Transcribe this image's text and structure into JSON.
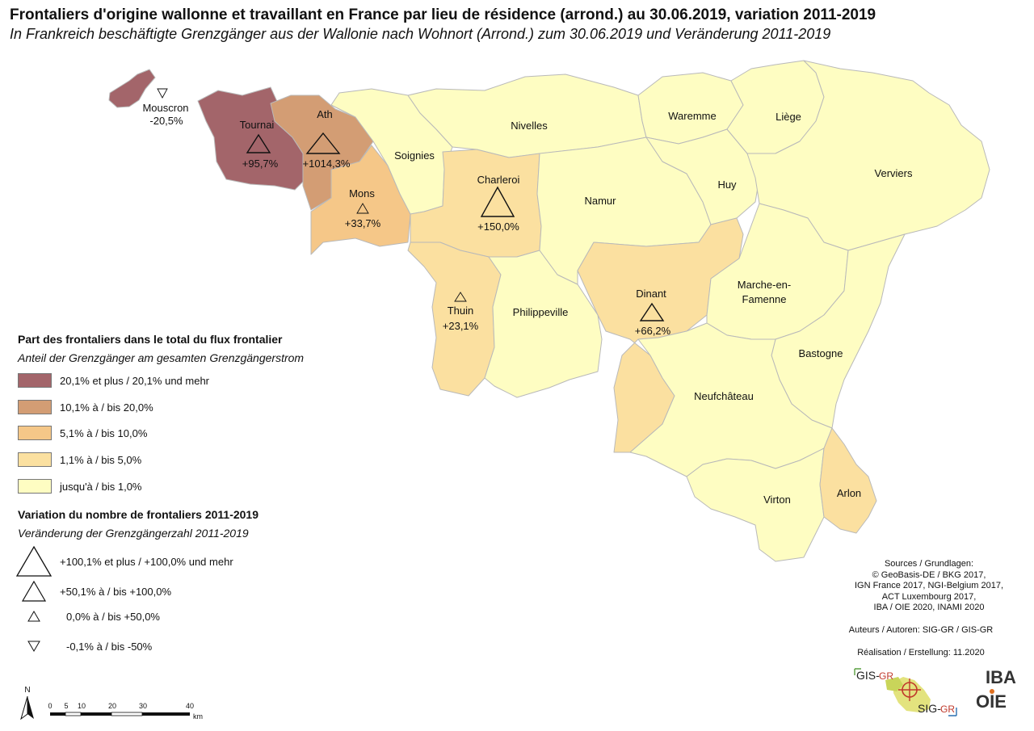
{
  "title": "Frontaliers d'origine wallonne et travaillant en France par lieu de résidence (arrond.) au 30.06.2019, variation 2011-2019",
  "subtitle": "In Frankreich beschäftigte Grenzgänger aus der Wallonie nach Wohnort (Arrond.) zum 30.06.2019 und Veränderung 2011-2019",
  "colors": {
    "class1": "#a3656a",
    "class2": "#d39d74",
    "class3": "#f5c788",
    "class4": "#fbe0a0",
    "class5": "#fefdc2",
    "border": "#b9b9b9"
  },
  "districts": [
    {
      "name": "Mouscron",
      "variation": "-20,5%",
      "share_class": 1,
      "trend": "down",
      "size_class": 4
    },
    {
      "name": "Tournai",
      "variation": "+95,7%",
      "share_class": 1,
      "trend": "up",
      "size_class": 2
    },
    {
      "name": "Ath",
      "variation": "+1014,3%",
      "share_class": 2,
      "trend": "up",
      "size_class": 1
    },
    {
      "name": "Mons",
      "variation": "+33,7%",
      "share_class": 3,
      "trend": "up",
      "size_class": 3
    },
    {
      "name": "Soignies",
      "variation": "",
      "share_class": 5
    },
    {
      "name": "Charleroi",
      "variation": "+150,0%",
      "share_class": 4,
      "trend": "up",
      "size_class": 1
    },
    {
      "name": "Thuin",
      "variation": "+23,1%",
      "share_class": 4,
      "trend": "up",
      "size_class": 3
    },
    {
      "name": "Philippeville",
      "variation": "",
      "share_class": 5
    },
    {
      "name": "Nivelles",
      "variation": "",
      "share_class": 5
    },
    {
      "name": "Namur",
      "variation": "",
      "share_class": 5
    },
    {
      "name": "Dinant",
      "variation": "+66,2%",
      "share_class": 4,
      "trend": "up",
      "size_class": 2
    },
    {
      "name": "Waremme",
      "variation": "",
      "share_class": 5
    },
    {
      "name": "Huy",
      "variation": "",
      "share_class": 5
    },
    {
      "name": "Liège",
      "variation": "",
      "share_class": 5
    },
    {
      "name": "Verviers",
      "variation": "",
      "share_class": 5
    },
    {
      "name": "Marche-en-",
      "variation": "",
      "share_class": 5
    },
    {
      "name": "Famenne",
      "variation": "",
      "share_class": 5
    },
    {
      "name": "Bastogne",
      "variation": "",
      "share_class": 5
    },
    {
      "name": "Neufchâteau",
      "variation": "",
      "share_class": 5
    },
    {
      "name": "Virton",
      "variation": "",
      "share_class": 5
    },
    {
      "name": "Arlon",
      "variation": "",
      "share_class": 4
    }
  ],
  "legend": {
    "share_title": "Part des frontaliers dans le total du flux frontalier",
    "share_subtitle": "Anteil der Grenzgänger am gesamten Grenzgängerstrom",
    "share_classes": [
      "20,1% et plus / 20,1% und mehr",
      "10,1% à / bis 20,0%",
      "5,1% à / bis 10,0%",
      "1,1% à / bis 5,0%",
      "jusqu'à / bis 1,0%"
    ],
    "var_title": "Variation du nombre de frontaliers 2011-2019",
    "var_subtitle": "Veränderung der Grenzgängerzahl 2011-2019",
    "var_classes": [
      "+100,1% et plus / +100,0% und mehr",
      "+50,1% à / bis +100,0%",
      "0,0% à / bis +50,0%",
      "-0,1% à / bis -50%"
    ]
  },
  "sources": {
    "heading": "Sources / Grundlagen:",
    "line1": "© GeoBasis-DE / BKG 2017,",
    "line2": "IGN France 2017, NGI-Belgium 2017,",
    "line3": "ACT Luxembourg 2017,",
    "line4": "IBA / OIE 2020, INAMI 2020",
    "authors": "Auteurs / Autoren: SIG-GR / GIS-GR",
    "realisation": "Réalisation / Erstellung: 11.2020"
  },
  "north": "N",
  "scale": {
    "ticks": [
      "0",
      "5",
      "10",
      "20",
      "30",
      "40"
    ],
    "unit": "km"
  },
  "logos": {
    "gis": "GIS-",
    "gis_gr": "GR",
    "sig": "SIG-",
    "sig_gr": "GR",
    "iba": "IBA",
    "oie": "OIE"
  }
}
